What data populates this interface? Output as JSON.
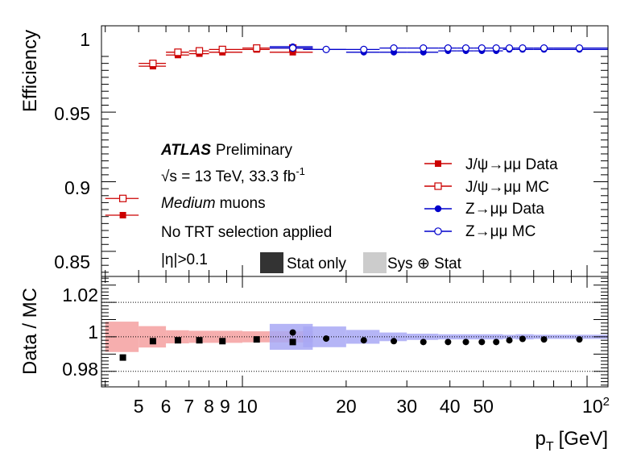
{
  "chart_data": [
    {
      "type": "scatter",
      "panel": "top",
      "ylabel": "Efficiency",
      "ylim": [
        0.832,
        1.012
      ],
      "xscale": "log",
      "xlim": [
        3.9,
        115
      ],
      "yticks": [
        "0.85",
        "0.9",
        "0.95",
        "1"
      ],
      "annotations": {
        "atlas": "ATLAS",
        "preliminary": "Preliminary",
        "energy": "√s = 13 TeV, 33.3 fb",
        "energy_sup": "-1",
        "medium": "Medium",
        "muons": "muons",
        "trt": "No TRT selection applied",
        "eta": "|η|>0.1"
      },
      "legend": {
        "position": "right",
        "entries": [
          "J/ψ→μμ Data",
          "J/ψ→μμ MC",
          "Z→μμ Data",
          "Z→μμ MC"
        ],
        "band_entries": [
          "Stat only",
          "Sys ⊕ Stat"
        ]
      },
      "series": [
        {
          "name": "J/ψ→μμ Data",
          "color": "#cc0000",
          "marker": "filled-square",
          "x": [
            4.5,
            5.5,
            6.5,
            7.5,
            8.75,
            11,
            14
          ],
          "xerr": [
            [
              4,
              5
            ],
            [
              5,
              6
            ],
            [
              6,
              7
            ],
            [
              7,
              8
            ],
            [
              8,
              10
            ],
            [
              10,
              12
            ],
            [
              12,
              16
            ]
          ],
          "y": [
            0.876,
            0.983,
            0.991,
            0.992,
            0.993,
            0.995,
            0.993
          ]
        },
        {
          "name": "J/ψ→μμ MC",
          "color": "#cc0000",
          "marker": "open-square",
          "x": [
            4.5,
            5.5,
            6.5,
            7.5,
            8.75,
            11,
            14
          ],
          "xerr": [
            [
              4,
              5
            ],
            [
              5,
              6
            ],
            [
              6,
              7
            ],
            [
              7,
              8
            ],
            [
              8,
              10
            ],
            [
              10,
              12
            ],
            [
              12,
              16
            ]
          ],
          "y": [
            0.888,
            0.985,
            0.993,
            0.994,
            0.995,
            0.996,
            0.996
          ]
        },
        {
          "name": "Z→μμ Data",
          "color": "#0000cc",
          "marker": "filled-circle",
          "x": [
            14,
            17.5,
            22.5,
            27.5,
            33.5,
            39.5,
            44.5,
            49.5,
            54.5,
            59.5,
            65,
            75,
            95
          ],
          "xerr": [
            [
              12,
              16
            ],
            [
              15,
              20
            ],
            [
              20,
              25
            ],
            [
              25,
              30
            ],
            [
              30,
              37
            ],
            [
              37,
              42
            ],
            [
              42,
              47
            ],
            [
              47,
              52
            ],
            [
              52,
              57
            ],
            [
              57,
              62
            ],
            [
              62,
              70
            ],
            [
              70,
              80
            ],
            [
              80,
              115
            ]
          ],
          "y": [
            0.997,
            0.995,
            0.993,
            0.993,
            0.993,
            0.994,
            0.994,
            0.994,
            0.994,
            0.995,
            0.995,
            0.995,
            0.995
          ]
        },
        {
          "name": "Z→μμ MC",
          "color": "#0000cc",
          "marker": "open-circle",
          "x": [
            14,
            17.5,
            22.5,
            27.5,
            33.5,
            39.5,
            44.5,
            49.5,
            54.5,
            59.5,
            65,
            75,
            95
          ],
          "xerr": [
            [
              12,
              16
            ],
            [
              15,
              20
            ],
            [
              20,
              25
            ],
            [
              25,
              30
            ],
            [
              30,
              37
            ],
            [
              37,
              42
            ],
            [
              42,
              47
            ],
            [
              47,
              52
            ],
            [
              52,
              57
            ],
            [
              57,
              62
            ],
            [
              62,
              70
            ],
            [
              70,
              80
            ],
            [
              80,
              115
            ]
          ],
          "y": [
            0.996,
            0.995,
            0.995,
            0.996,
            0.996,
            0.996,
            0.996,
            0.996,
            0.996,
            0.996,
            0.996,
            0.996,
            0.996
          ]
        }
      ]
    },
    {
      "type": "scatter",
      "panel": "ratio",
      "ylabel": "Data / MC",
      "xlabel": "p",
      "xlabel_sub": "T",
      "xlabel_unit": "[GeV]",
      "xscale": "log",
      "xlim": [
        3.9,
        115
      ],
      "ylim": [
        0.971,
        1.035
      ],
      "yticks": [
        "0.98",
        "1",
        "1.02"
      ],
      "xticks": [
        "5",
        "6",
        "7",
        "8",
        "9",
        "10",
        "20",
        "30",
        "40",
        "50"
      ],
      "xtick_values": [
        5,
        6,
        7,
        8,
        9,
        10,
        20,
        30,
        40,
        50
      ],
      "xtick_pow_base": "10",
      "xtick_pow_exp": "2",
      "reference_line": 1,
      "bands": [
        {
          "name": "J/ψ Sys ⊕ Stat",
          "color": "#f4a0a0",
          "bins": [
            [
              4,
              5
            ],
            [
              5,
              6
            ],
            [
              6,
              7
            ],
            [
              7,
              8
            ],
            [
              8,
              10
            ],
            [
              10,
              12
            ],
            [
              12,
              16
            ]
          ],
          "half_width": [
            0.0088,
            0.0062,
            0.0038,
            0.0035,
            0.0035,
            0.0032,
            0.0032
          ]
        },
        {
          "name": "Z Sys ⊕ Stat",
          "color": "#a8a8f4",
          "bins": [
            [
              12,
              16
            ],
            [
              15,
              20
            ],
            [
              20,
              25
            ],
            [
              25,
              30
            ],
            [
              30,
              37
            ],
            [
              37,
              42
            ],
            [
              42,
              47
            ],
            [
              47,
              52
            ],
            [
              52,
              57
            ],
            [
              57,
              62
            ],
            [
              62,
              70
            ],
            [
              70,
              80
            ],
            [
              80,
              115
            ]
          ],
          "half_width": [
            0.0075,
            0.006,
            0.004,
            0.0025,
            0.0018,
            0.0015,
            0.0015,
            0.0015,
            0.0015,
            0.0012,
            0.0015,
            0.0012,
            0.0012
          ]
        }
      ],
      "series": [
        {
          "name": "J/ψ Data / MC",
          "marker": "filled-square",
          "color": "#000000",
          "x": [
            4.5,
            5.5,
            6.5,
            7.5,
            8.75,
            11,
            14
          ],
          "y": [
            0.988,
            0.9975,
            0.998,
            0.998,
            0.9975,
            0.9985,
            0.997
          ]
        },
        {
          "name": "Z Data / MC",
          "marker": "filled-circle",
          "color": "#000000",
          "x": [
            14,
            17.5,
            22.5,
            27.5,
            33.5,
            39.5,
            44.5,
            49.5,
            54.5,
            59.5,
            65,
            75,
            95
          ],
          "y": [
            1.0025,
            0.999,
            0.998,
            0.9975,
            0.997,
            0.997,
            0.997,
            0.997,
            0.997,
            0.998,
            0.9988,
            0.9985,
            0.9985
          ]
        }
      ]
    }
  ]
}
